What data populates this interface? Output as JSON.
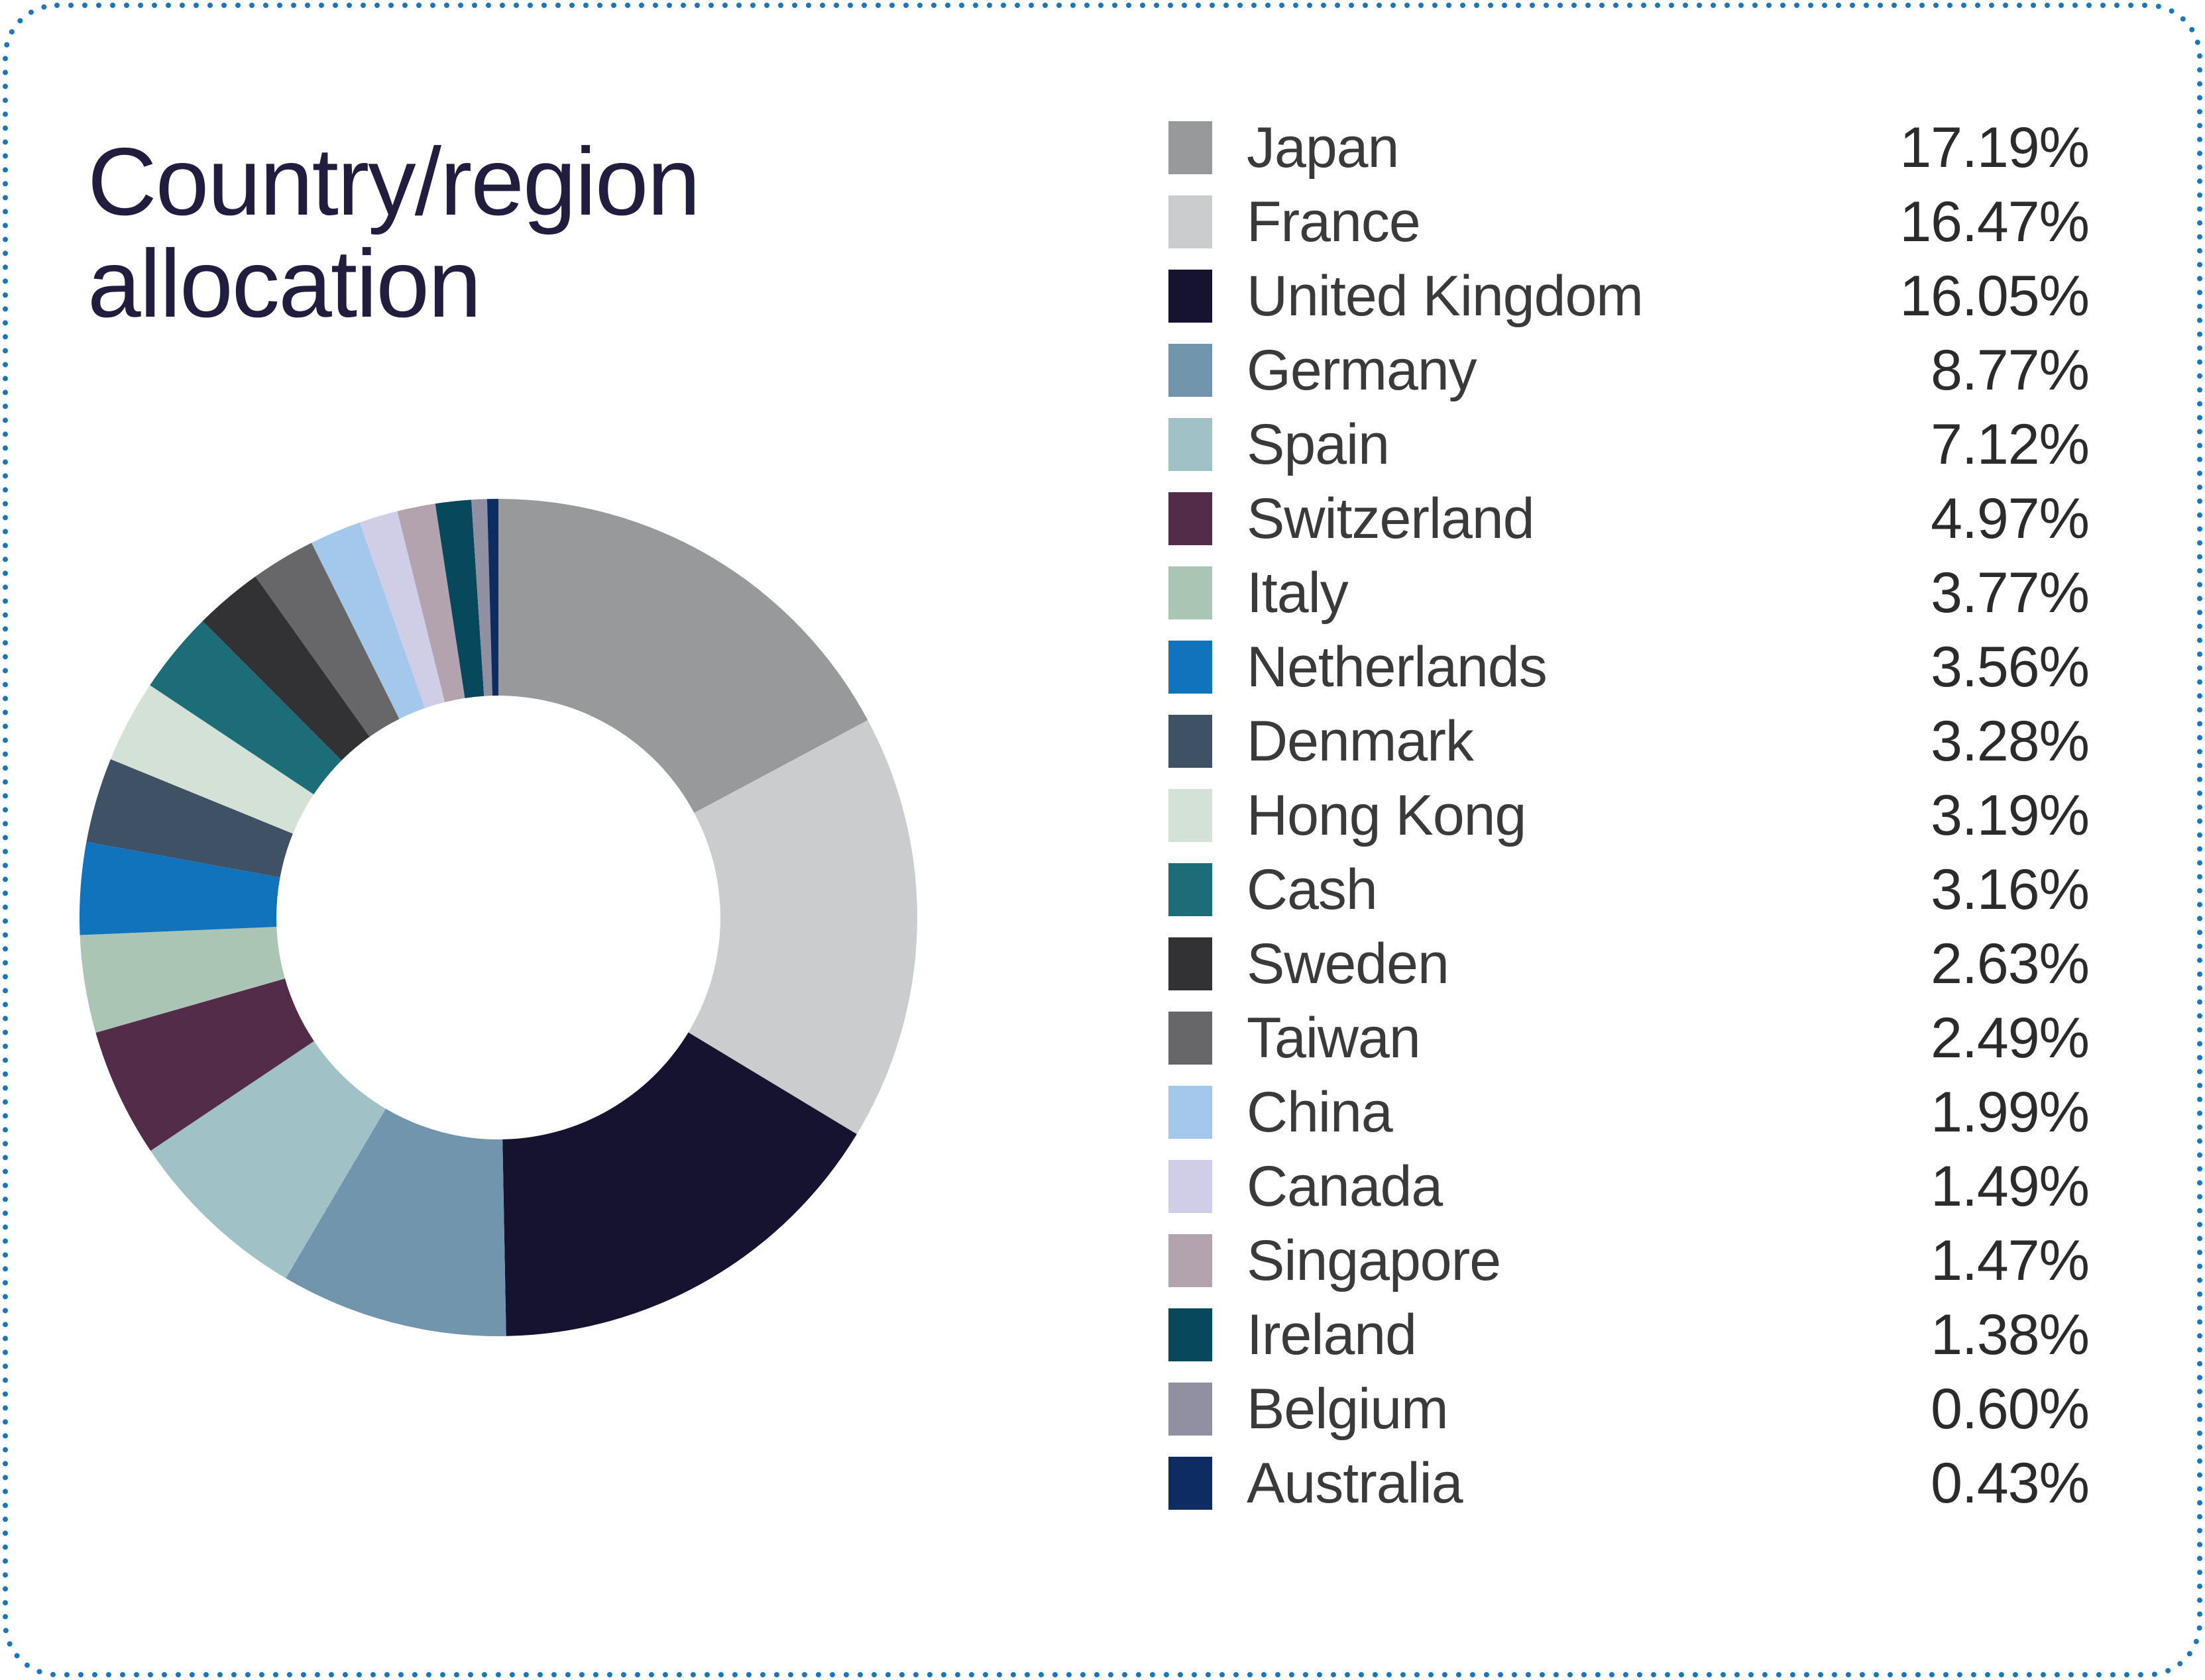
{
  "chart_data": {
    "type": "pie",
    "variant": "donut",
    "title": "Country/region allocation",
    "legend_position": "right",
    "hole_ratio": 0.53,
    "start_angle_deg": 0,
    "direction": "clockwise",
    "categories": [
      "Japan",
      "France",
      "United Kingdom",
      "Germany",
      "Spain",
      "Switzerland",
      "Italy",
      "Netherlands",
      "Denmark",
      "Hong Kong",
      "Cash",
      "Sweden",
      "Taiwan",
      "China",
      "Canada",
      "Singapore",
      "Ireland",
      "Belgium",
      "Australia"
    ],
    "values": [
      17.19,
      16.47,
      16.05,
      8.77,
      7.12,
      4.97,
      3.77,
      3.56,
      3.28,
      3.19,
      3.16,
      2.63,
      2.49,
      1.99,
      1.49,
      1.47,
      1.38,
      0.6,
      0.43
    ],
    "value_labels": [
      "17.19%",
      "16.47%",
      "16.05%",
      "8.77%",
      "7.12%",
      "4.97%",
      "3.77%",
      "3.56%",
      "3.28%",
      "3.19%",
      "3.16%",
      "2.63%",
      "2.49%",
      "1.99%",
      "1.49%",
      "1.47%",
      "1.38%",
      "0.60%",
      "0.43%"
    ],
    "colors": [
      "#97999B",
      "#CBCCCE",
      "#161331",
      "#7295AE",
      "#A0C2C7",
      "#522C48",
      "#ABC5B5",
      "#1173BC",
      "#3F5164",
      "#D3E1D7",
      "#1C6D77",
      "#323234",
      "#676769",
      "#A4C8EC",
      "#CFCEE6",
      "#B3A3AF",
      "#07485D",
      "#9190A3",
      "#0C2C62"
    ]
  },
  "theme": {
    "title-color": "#201D3E",
    "label-color": "#3A3A3A",
    "value-color": "#2B2B2B",
    "border-accent": "#1B76C0",
    "background": "#FFFFFF"
  }
}
